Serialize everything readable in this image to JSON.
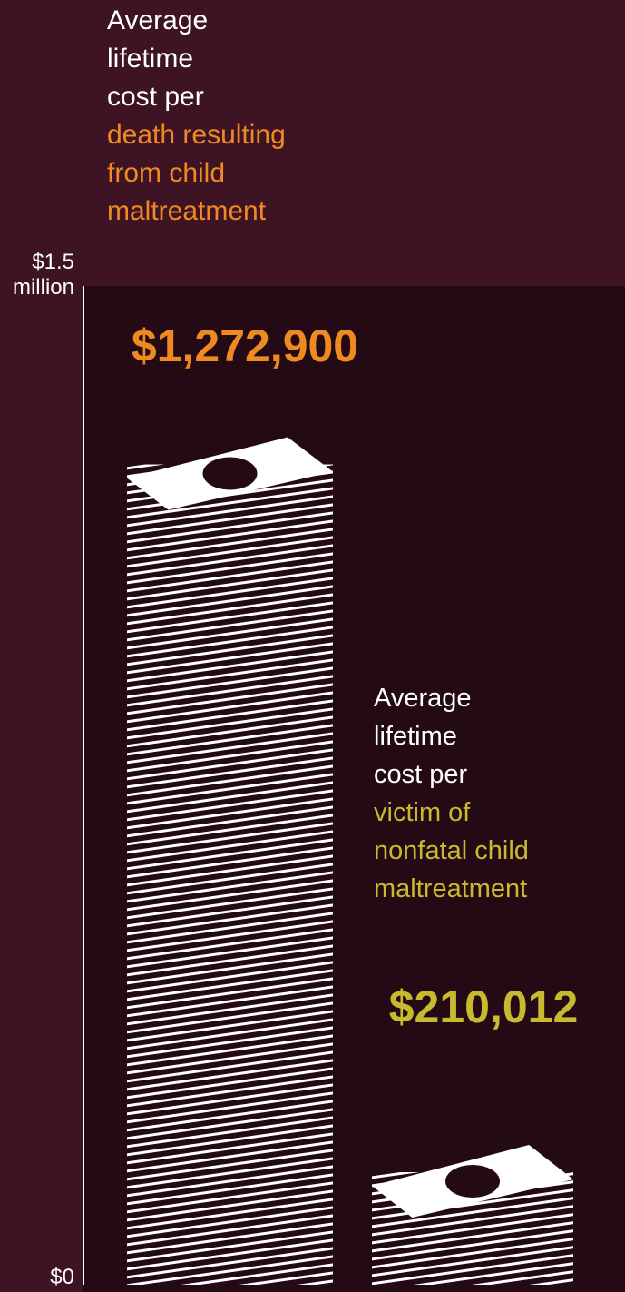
{
  "chart_data": {
    "type": "bar",
    "category_prefix": "Average lifetime cost per",
    "categories": [
      "death resulting from child maltreatment",
      "victim of nonfatal child maltreatment"
    ],
    "colors": [
      "#ef8a22",
      "#c9b92e"
    ],
    "values": [
      1272900,
      210012
    ],
    "value_labels": [
      "$1,272,900",
      "$210,012"
    ],
    "ylim": [
      0,
      1500000
    ],
    "yticks": [
      {
        "value": 0,
        "label": "$0"
      },
      {
        "value": 1500000,
        "label": "$1.5 million"
      }
    ]
  }
}
